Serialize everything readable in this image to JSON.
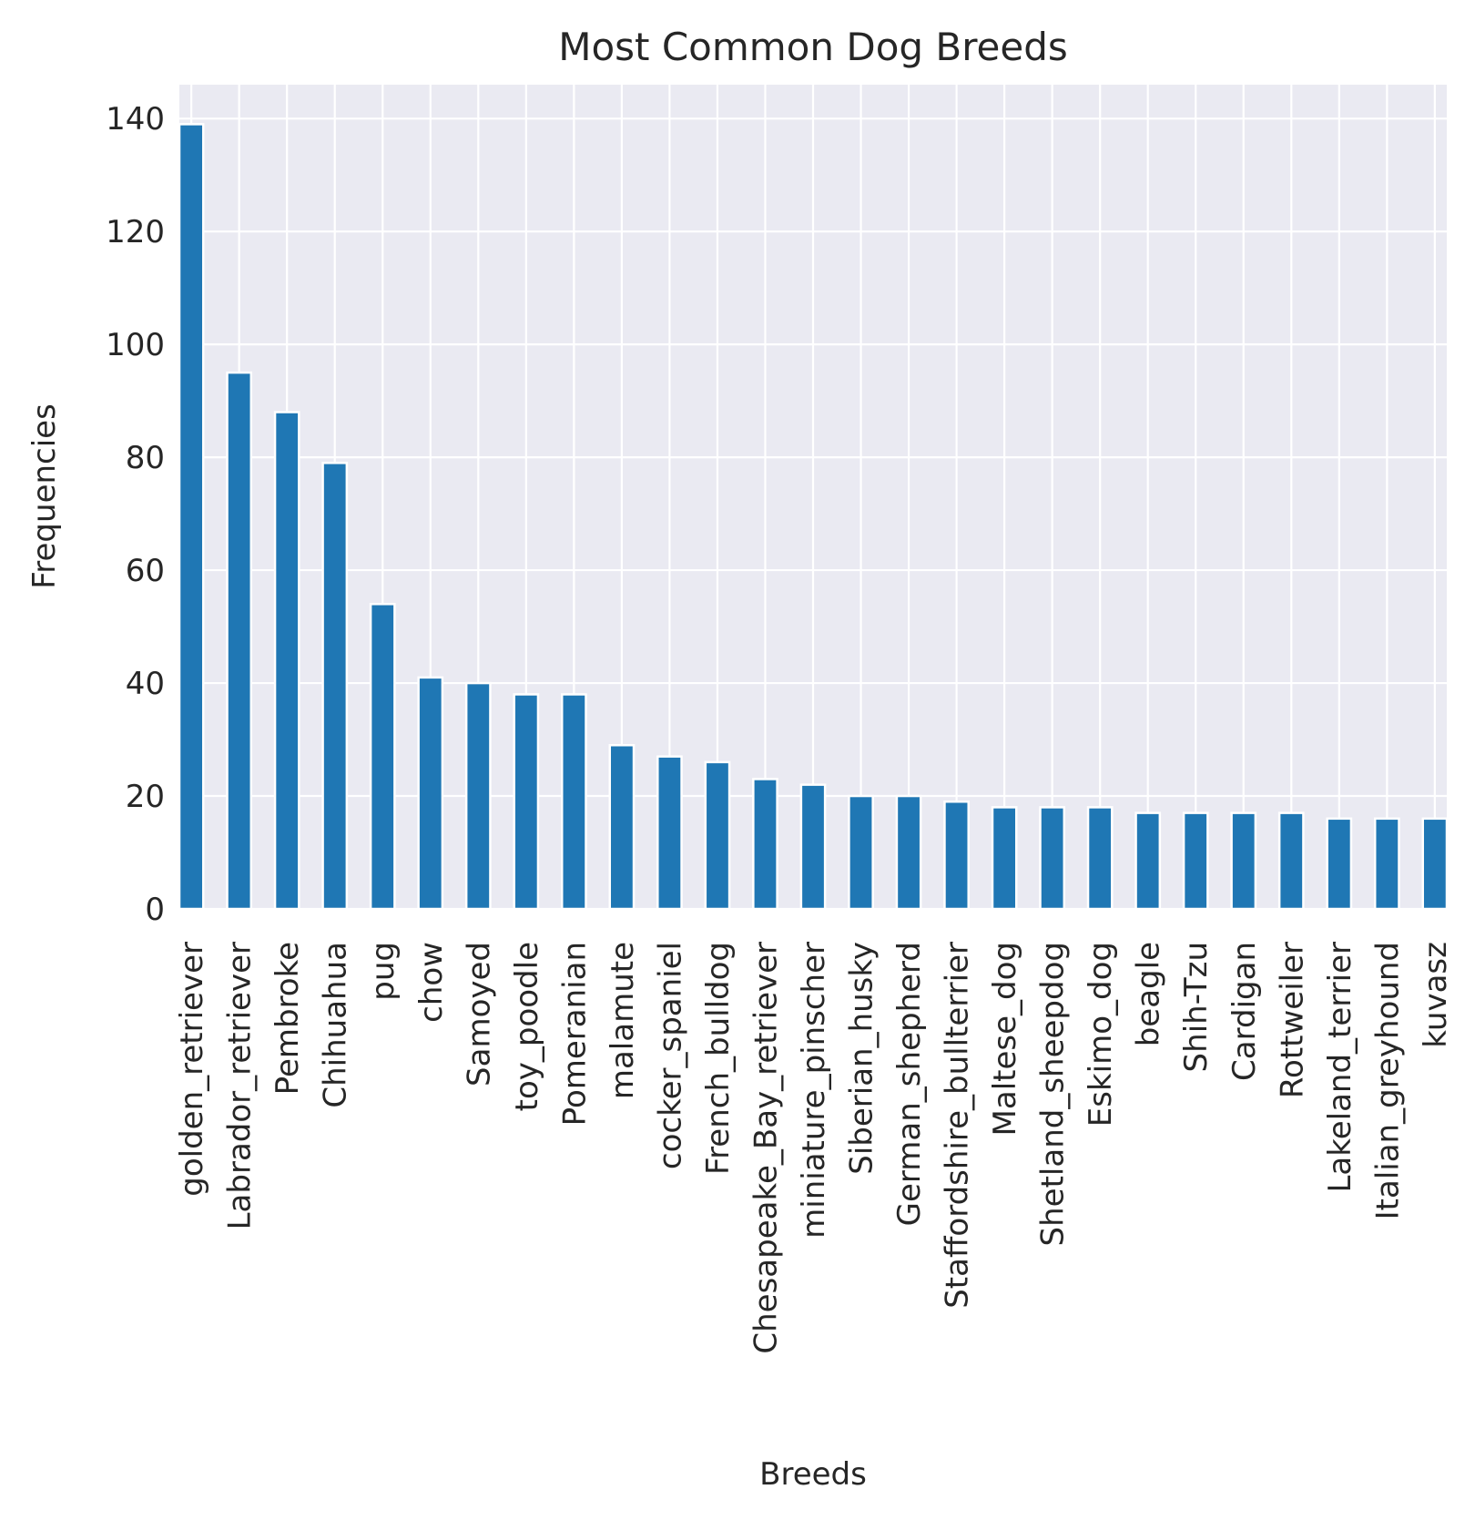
{
  "chart_data": {
    "type": "bar",
    "title": "Most Common Dog Breeds",
    "xlabel": "Breeds",
    "ylabel": "Frequencies",
    "categories": [
      "golden_retriever",
      "Labrador_retriever",
      "Pembroke",
      "Chihuahua",
      "pug",
      "chow",
      "Samoyed",
      "toy_poodle",
      "Pomeranian",
      "malamute",
      "cocker_spaniel",
      "French_bulldog",
      "Chesapeake_Bay_retriever",
      "miniature_pinscher",
      "Siberian_husky",
      "German_shepherd",
      "Staffordshire_bullterrier",
      "Maltese_dog",
      "Shetland_sheepdog",
      "Eskimo_dog",
      "beagle",
      "Shih-Tzu",
      "Cardigan",
      "Rottweiler",
      "Lakeland_terrier",
      "Italian_greyhound",
      "kuvasz"
    ],
    "values": [
      139,
      95,
      88,
      79,
      54,
      41,
      40,
      38,
      38,
      29,
      27,
      26,
      23,
      22,
      20,
      20,
      19,
      18,
      18,
      18,
      17,
      17,
      17,
      17,
      16,
      16,
      16
    ],
    "ylim": [
      0,
      146
    ],
    "yticks": [
      0,
      20,
      40,
      60,
      80,
      100,
      120,
      140
    ],
    "grid": true,
    "legend": "none",
    "colors": {
      "bar": "#1f77b4",
      "background": "#eaeaf2",
      "grid": "#ffffff",
      "text": "#262626"
    }
  }
}
